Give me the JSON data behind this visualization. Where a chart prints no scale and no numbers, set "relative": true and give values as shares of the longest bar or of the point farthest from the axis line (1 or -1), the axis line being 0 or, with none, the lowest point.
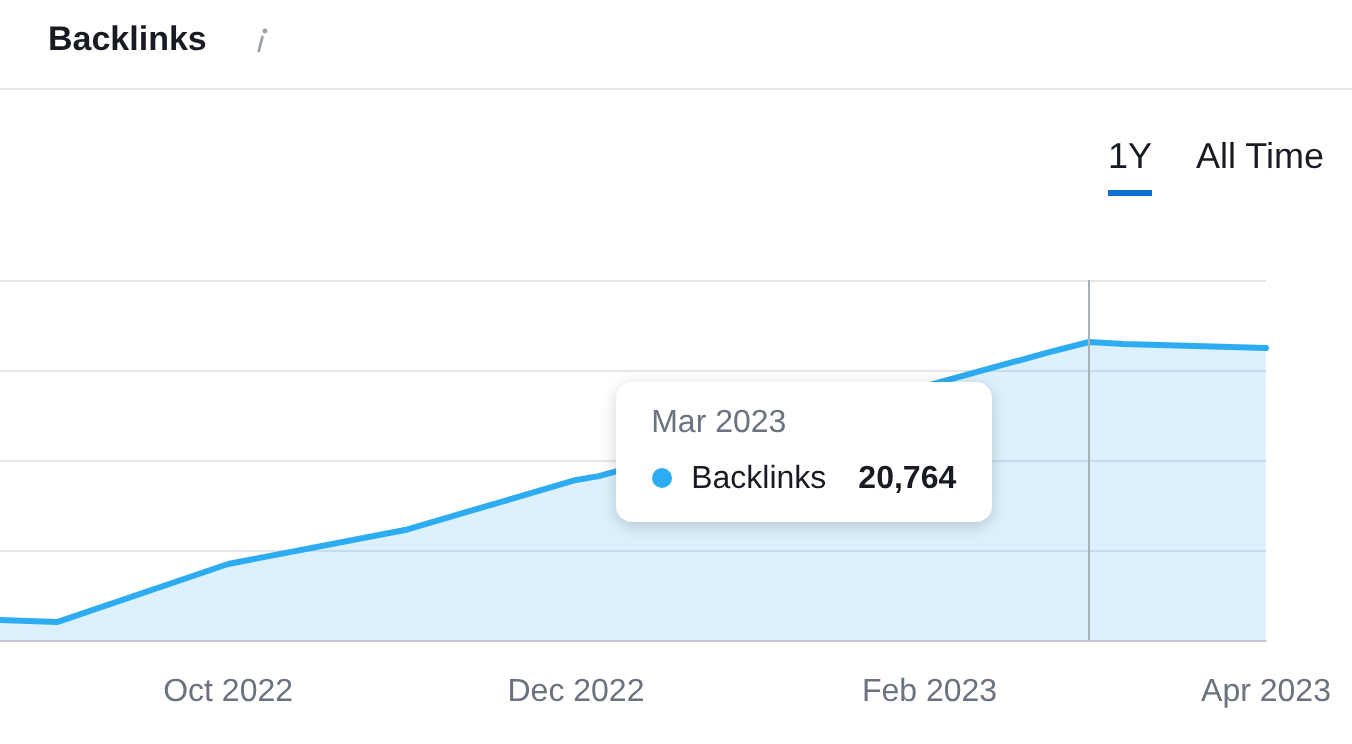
{
  "chart_data": {
    "type": "area",
    "title": "Backlinks",
    "relative": true,
    "grid": "y",
    "legend": "center",
    "marker": "none",
    "line_style": "solid",
    "x": [
      "2022-08-22",
      "2022-09-01",
      "2022-10-01",
      "2022-11-01",
      "2022-12-01",
      "2022-12-05",
      "2023-02-22",
      "2023-03-01",
      "2023-03-07",
      "2023-04-01"
    ],
    "xlim": [
      "2022-08-22",
      "2023-04-01"
    ],
    "xticks": [
      {
        "value": "2022-10-01",
        "label": "Oct 2022"
      },
      {
        "value": "2022-12-01",
        "label": "Dec 2022"
      },
      {
        "value": "2023-02-01",
        "label": "Feb 2023"
      },
      {
        "value": "2023-04-01",
        "label": "Apr 2023"
      }
    ],
    "series": [
      {
        "name": "Backlinks",
        "color": "#2eacf2",
        "values": [
          0.067,
          0.06,
          0.255,
          0.369,
          0.537,
          0.55,
          0.966,
          1,
          0.993,
          0.98
        ]
      }
    ],
    "ref_lines": [
      {
        "axis": "x",
        "value": "2023-03-01",
        "label": null,
        "color": "#a9b1bb"
      }
    ],
    "annotations": [
      "1Y",
      "All Time",
      "Mar 2023",
      "20,764"
    ]
  }
}
